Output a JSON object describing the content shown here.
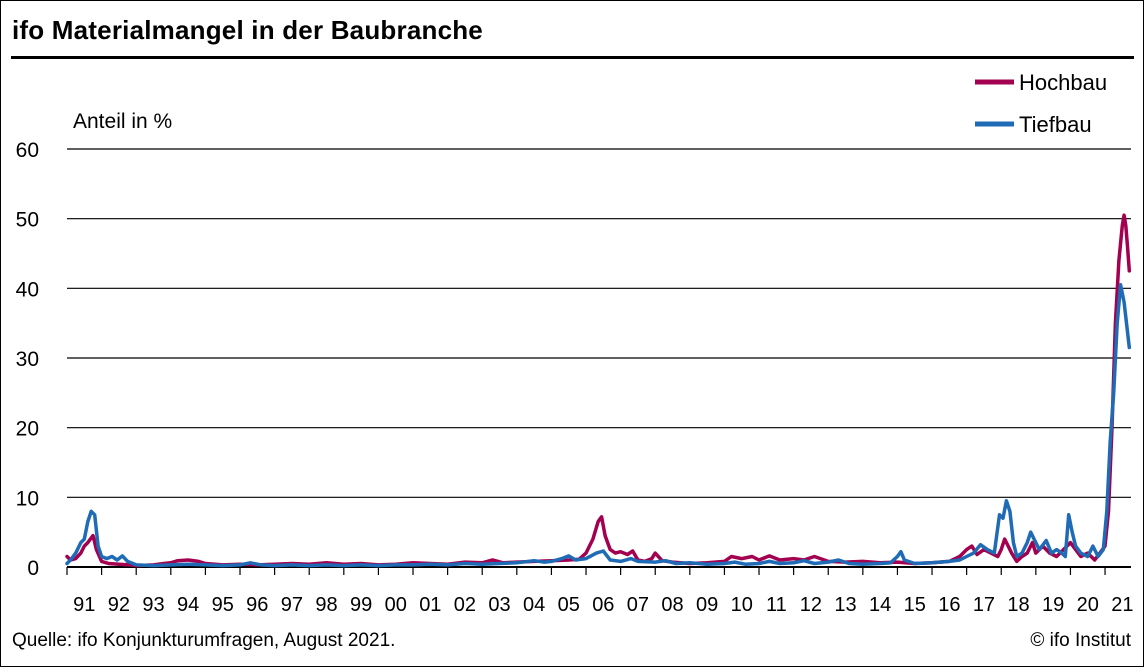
{
  "header": {
    "title": "ifo Materialmangel in der Baubranche"
  },
  "footer": {
    "source": "Quelle: ifo Konjunkturumfragen, August 2021.",
    "copyright": "© ifo Institut"
  },
  "chart_data": {
    "type": "line",
    "title": "ifo Materialmangel in der Baubranche",
    "ylabel": "Anteil in %",
    "xlabel": "",
    "ylim": [
      0,
      60
    ],
    "xlim": [
      1991,
      2021.75
    ],
    "yticks": [
      0,
      10,
      20,
      30,
      40,
      50,
      60
    ],
    "xtick_labels": [
      "91",
      "92",
      "93",
      "94",
      "95",
      "96",
      "97",
      "98",
      "99",
      "00",
      "01",
      "02",
      "03",
      "04",
      "05",
      "06",
      "07",
      "08",
      "09",
      "10",
      "11",
      "12",
      "13",
      "14",
      "15",
      "16",
      "17",
      "18",
      "19",
      "20",
      "21"
    ],
    "grid": true,
    "legend_position": "top-right",
    "colors": {
      "Hochbau": "#a3004f",
      "Tiefbau": "#1f6bb5"
    },
    "series": [
      {
        "name": "Hochbau",
        "color": "#a3004f",
        "points": [
          [
            1991.0,
            1.5
          ],
          [
            1991.1,
            1.0
          ],
          [
            1991.25,
            1.2
          ],
          [
            1991.4,
            2.0
          ],
          [
            1991.5,
            3.0
          ],
          [
            1991.6,
            3.5
          ],
          [
            1991.75,
            4.5
          ],
          [
            1991.85,
            2.5
          ],
          [
            1992.0,
            0.8
          ],
          [
            1992.2,
            0.5
          ],
          [
            1992.5,
            0.4
          ],
          [
            1992.8,
            0.3
          ],
          [
            1993.0,
            0.2
          ],
          [
            1993.5,
            0.3
          ],
          [
            1993.8,
            0.5
          ],
          [
            1994.0,
            0.6
          ],
          [
            1994.2,
            0.9
          ],
          [
            1994.5,
            1.0
          ],
          [
            1994.8,
            0.8
          ],
          [
            1995.0,
            0.5
          ],
          [
            1995.5,
            0.3
          ],
          [
            1996.0,
            0.4
          ],
          [
            1996.5,
            0.3
          ],
          [
            1997.0,
            0.4
          ],
          [
            1997.5,
            0.5
          ],
          [
            1998.0,
            0.4
          ],
          [
            1998.5,
            0.6
          ],
          [
            1999.0,
            0.4
          ],
          [
            1999.5,
            0.5
          ],
          [
            2000.0,
            0.3
          ],
          [
            2000.5,
            0.4
          ],
          [
            2001.0,
            0.6
          ],
          [
            2001.5,
            0.5
          ],
          [
            2002.0,
            0.4
          ],
          [
            2002.5,
            0.7
          ],
          [
            2003.0,
            0.6
          ],
          [
            2003.3,
            1.0
          ],
          [
            2003.6,
            0.6
          ],
          [
            2004.0,
            0.7
          ],
          [
            2004.5,
            0.8
          ],
          [
            2005.0,
            0.9
          ],
          [
            2005.5,
            1.0
          ],
          [
            2005.8,
            1.1
          ],
          [
            2006.0,
            2.0
          ],
          [
            2006.2,
            4.0
          ],
          [
            2006.35,
            6.5
          ],
          [
            2006.45,
            7.2
          ],
          [
            2006.55,
            4.5
          ],
          [
            2006.7,
            2.5
          ],
          [
            2006.85,
            2.0
          ],
          [
            2007.0,
            2.2
          ],
          [
            2007.2,
            1.8
          ],
          [
            2007.35,
            2.3
          ],
          [
            2007.5,
            1.0
          ],
          [
            2007.7,
            0.8
          ],
          [
            2007.9,
            1.2
          ],
          [
            2008.0,
            2.0
          ],
          [
            2008.2,
            0.9
          ],
          [
            2008.5,
            0.7
          ],
          [
            2009.0,
            0.5
          ],
          [
            2009.5,
            0.6
          ],
          [
            2010.0,
            0.8
          ],
          [
            2010.2,
            1.5
          ],
          [
            2010.5,
            1.2
          ],
          [
            2010.8,
            1.5
          ],
          [
            2011.0,
            1.0
          ],
          [
            2011.3,
            1.6
          ],
          [
            2011.6,
            1.0
          ],
          [
            2012.0,
            1.2
          ],
          [
            2012.3,
            1.0
          ],
          [
            2012.6,
            1.5
          ],
          [
            2013.0,
            0.8
          ],
          [
            2013.5,
            0.7
          ],
          [
            2014.0,
            0.8
          ],
          [
            2014.5,
            0.6
          ],
          [
            2015.0,
            0.7
          ],
          [
            2015.5,
            0.5
          ],
          [
            2016.0,
            0.6
          ],
          [
            2016.5,
            0.8
          ],
          [
            2016.8,
            1.5
          ],
          [
            2017.0,
            2.5
          ],
          [
            2017.15,
            3.0
          ],
          [
            2017.3,
            1.8
          ],
          [
            2017.5,
            2.5
          ],
          [
            2017.7,
            2.0
          ],
          [
            2017.9,
            1.5
          ],
          [
            2018.0,
            2.5
          ],
          [
            2018.1,
            4.0
          ],
          [
            2018.2,
            3.0
          ],
          [
            2018.3,
            2.0
          ],
          [
            2018.45,
            0.8
          ],
          [
            2018.6,
            1.5
          ],
          [
            2018.75,
            2.0
          ],
          [
            2018.9,
            3.5
          ],
          [
            2019.0,
            2.0
          ],
          [
            2019.2,
            3.0
          ],
          [
            2019.4,
            2.0
          ],
          [
            2019.6,
            1.5
          ],
          [
            2019.8,
            2.5
          ],
          [
            2020.0,
            3.5
          ],
          [
            2020.15,
            2.5
          ],
          [
            2020.3,
            1.5
          ],
          [
            2020.5,
            2.0
          ],
          [
            2020.7,
            1.0
          ],
          [
            2020.85,
            2.0
          ],
          [
            2021.0,
            3.0
          ],
          [
            2021.1,
            8.0
          ],
          [
            2021.2,
            20.0
          ],
          [
            2021.3,
            35.0
          ],
          [
            2021.4,
            44.0
          ],
          [
            2021.5,
            49.0
          ],
          [
            2021.55,
            50.5
          ],
          [
            2021.6,
            49.0
          ],
          [
            2021.65,
            46.0
          ],
          [
            2021.7,
            42.5
          ]
        ]
      },
      {
        "name": "Tiefbau",
        "color": "#1f6bb5",
        "points": [
          [
            1991.0,
            0.5
          ],
          [
            1991.1,
            1.0
          ],
          [
            1991.25,
            2.0
          ],
          [
            1991.4,
            3.5
          ],
          [
            1991.5,
            4.0
          ],
          [
            1991.6,
            6.5
          ],
          [
            1991.7,
            8.0
          ],
          [
            1991.8,
            7.5
          ],
          [
            1991.9,
            3.0
          ],
          [
            1992.0,
            1.5
          ],
          [
            1992.15,
            1.2
          ],
          [
            1992.3,
            1.5
          ],
          [
            1992.45,
            1.0
          ],
          [
            1992.6,
            1.6
          ],
          [
            1992.75,
            0.8
          ],
          [
            1993.0,
            0.3
          ],
          [
            1993.5,
            0.2
          ],
          [
            1994.0,
            0.3
          ],
          [
            1994.5,
            0.4
          ],
          [
            1995.0,
            0.3
          ],
          [
            1995.5,
            0.2
          ],
          [
            1996.0,
            0.3
          ],
          [
            1996.3,
            0.6
          ],
          [
            1996.6,
            0.3
          ],
          [
            1997.0,
            0.2
          ],
          [
            1997.5,
            0.3
          ],
          [
            1998.0,
            0.2
          ],
          [
            1998.5,
            0.3
          ],
          [
            1999.0,
            0.2
          ],
          [
            1999.5,
            0.3
          ],
          [
            2000.0,
            0.2
          ],
          [
            2000.5,
            0.3
          ],
          [
            2001.0,
            0.3
          ],
          [
            2001.5,
            0.4
          ],
          [
            2002.0,
            0.3
          ],
          [
            2002.5,
            0.5
          ],
          [
            2003.0,
            0.4
          ],
          [
            2003.5,
            0.5
          ],
          [
            2004.0,
            0.6
          ],
          [
            2004.5,
            0.9
          ],
          [
            2004.8,
            0.7
          ],
          [
            2005.0,
            0.8
          ],
          [
            2005.3,
            1.2
          ],
          [
            2005.5,
            1.6
          ],
          [
            2005.7,
            1.0
          ],
          [
            2006.0,
            1.2
          ],
          [
            2006.3,
            2.0
          ],
          [
            2006.5,
            2.3
          ],
          [
            2006.7,
            1.0
          ],
          [
            2007.0,
            0.8
          ],
          [
            2007.3,
            1.2
          ],
          [
            2007.5,
            0.8
          ],
          [
            2008.0,
            0.7
          ],
          [
            2008.3,
            0.9
          ],
          [
            2008.6,
            0.5
          ],
          [
            2009.0,
            0.6
          ],
          [
            2009.5,
            0.4
          ],
          [
            2010.0,
            0.5
          ],
          [
            2010.3,
            0.7
          ],
          [
            2010.6,
            0.4
          ],
          [
            2011.0,
            0.5
          ],
          [
            2011.3,
            0.8
          ],
          [
            2011.6,
            0.5
          ],
          [
            2012.0,
            0.6
          ],
          [
            2012.3,
            0.9
          ],
          [
            2012.6,
            0.5
          ],
          [
            2013.0,
            0.7
          ],
          [
            2013.3,
            1.0
          ],
          [
            2013.6,
            0.5
          ],
          [
            2014.0,
            0.4
          ],
          [
            2014.5,
            0.5
          ],
          [
            2014.8,
            0.6
          ],
          [
            2015.0,
            1.5
          ],
          [
            2015.1,
            2.2
          ],
          [
            2015.2,
            1.0
          ],
          [
            2015.5,
            0.5
          ],
          [
            2016.0,
            0.6
          ],
          [
            2016.5,
            0.8
          ],
          [
            2016.8,
            1.0
          ],
          [
            2017.0,
            1.5
          ],
          [
            2017.2,
            2.0
          ],
          [
            2017.4,
            3.2
          ],
          [
            2017.6,
            2.5
          ],
          [
            2017.8,
            2.0
          ],
          [
            2017.95,
            7.5
          ],
          [
            2018.05,
            7.0
          ],
          [
            2018.15,
            9.5
          ],
          [
            2018.25,
            8.0
          ],
          [
            2018.35,
            3.5
          ],
          [
            2018.45,
            1.5
          ],
          [
            2018.6,
            2.0
          ],
          [
            2018.75,
            3.5
          ],
          [
            2018.85,
            5.0
          ],
          [
            2018.95,
            4.0
          ],
          [
            2019.1,
            2.5
          ],
          [
            2019.3,
            3.8
          ],
          [
            2019.45,
            2.0
          ],
          [
            2019.6,
            2.5
          ],
          [
            2019.75,
            2.0
          ],
          [
            2019.85,
            1.5
          ],
          [
            2019.95,
            7.5
          ],
          [
            2020.05,
            5.0
          ],
          [
            2020.15,
            3.0
          ],
          [
            2020.3,
            2.0
          ],
          [
            2020.5,
            1.5
          ],
          [
            2020.65,
            3.0
          ],
          [
            2020.8,
            1.5
          ],
          [
            2020.95,
            2.5
          ],
          [
            2021.05,
            8.0
          ],
          [
            2021.15,
            18.0
          ],
          [
            2021.25,
            25.0
          ],
          [
            2021.35,
            35.0
          ],
          [
            2021.45,
            40.5
          ],
          [
            2021.55,
            38.0
          ],
          [
            2021.62,
            35.0
          ],
          [
            2021.7,
            31.5
          ]
        ]
      }
    ]
  }
}
